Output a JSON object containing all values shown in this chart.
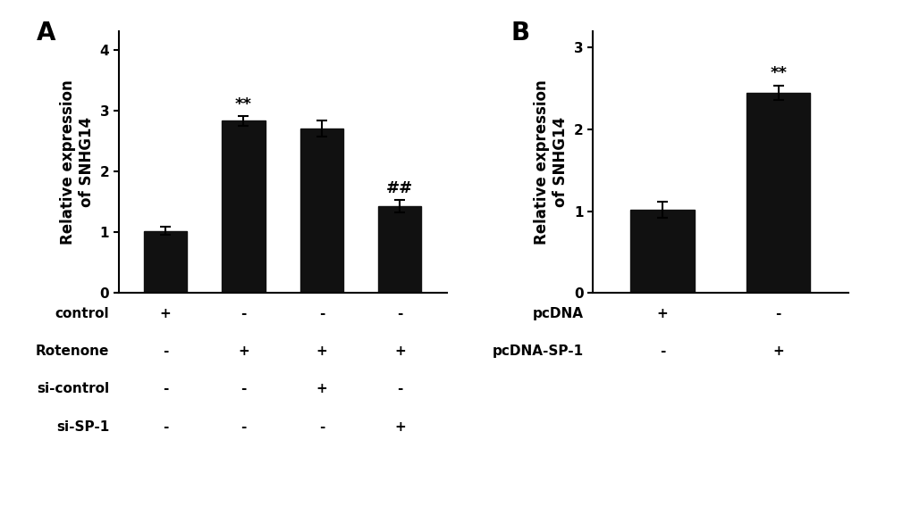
{
  "panel_A": {
    "values": [
      1.02,
      2.83,
      2.7,
      1.43
    ],
    "errors": [
      0.07,
      0.08,
      0.13,
      0.1
    ],
    "annotations": [
      "",
      "**",
      "",
      "##"
    ],
    "bar_color": "#111111",
    "ylim": [
      0,
      4.3
    ],
    "yticks": [
      0,
      1,
      2,
      3,
      4
    ],
    "ylabel": "Relative expression\nof SNHG14",
    "panel_label": "A",
    "row_labels": [
      "control",
      "Rotenone",
      "si-control",
      "si-SP-1"
    ],
    "row_data": [
      [
        "+",
        "-",
        "-",
        "-"
      ],
      [
        "-",
        "+",
        "+",
        "+"
      ],
      [
        "-",
        "-",
        "+",
        "-"
      ],
      [
        "-",
        "-",
        "-",
        "+"
      ]
    ]
  },
  "panel_B": {
    "values": [
      1.02,
      2.45
    ],
    "errors": [
      0.1,
      0.09
    ],
    "annotations": [
      "",
      "**"
    ],
    "bar_color": "#111111",
    "ylim": [
      0,
      3.2
    ],
    "yticks": [
      0,
      1,
      2,
      3
    ],
    "ylabel": "Relative expression\nof SNHG14",
    "panel_label": "B",
    "row_labels": [
      "pcDNA",
      "pcDNA-SP-1"
    ],
    "row_data": [
      [
        "+",
        "-"
      ],
      [
        "-",
        "+"
      ]
    ]
  },
  "bar_width": 0.55,
  "error_capsize": 4,
  "annotation_fontsize": 13,
  "axis_label_fontsize": 12,
  "tick_fontsize": 11,
  "panel_label_fontsize": 20,
  "row_label_fontsize": 11,
  "background_color": "#ffffff"
}
